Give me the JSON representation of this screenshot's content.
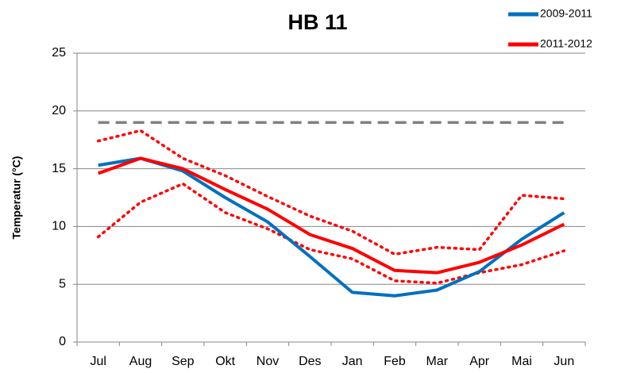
{
  "chart_data": {
    "type": "line",
    "title": "HB 11",
    "y_label": "Temperatur (°C)",
    "categories": [
      "Jul",
      "Aug",
      "Sep",
      "Okt",
      "Nov",
      "Des",
      "Jan",
      "Feb",
      "Mar",
      "Apr",
      "Mai",
      "Jun"
    ],
    "series": [
      {
        "values": [
          19,
          19,
          19,
          19,
          19,
          19,
          19,
          19,
          19,
          19,
          19,
          19
        ],
        "color": "#808080",
        "style": "dashed"
      },
      {
        "values": [
          17.4,
          18.3,
          15.9,
          14.4,
          12.6,
          10.9,
          9.6,
          7.6,
          8.2,
          8.0,
          12.7,
          12.4
        ],
        "color": "#ff0000",
        "style": "dotted"
      },
      {
        "values": [
          9.1,
          12.1,
          13.7,
          11.2,
          9.8,
          8.0,
          7.2,
          5.3,
          5.1,
          6.0,
          6.7,
          7.9
        ],
        "color": "#ff0000",
        "style": "dotted"
      },
      {
        "name": "2009-2011",
        "values": [
          15.3,
          15.9,
          14.8,
          12.5,
          10.4,
          7.4,
          4.3,
          4.0,
          4.5,
          6.1,
          8.9,
          11.2
        ],
        "color": "#0070c0",
        "style": "solid"
      },
      {
        "name": "2011-2012",
        "values": [
          14.6,
          15.9,
          15.0,
          13.2,
          11.5,
          9.3,
          8.1,
          6.2,
          6.0,
          6.9,
          8.4,
          10.2
        ],
        "color": "#ff0000",
        "style": "solid"
      }
    ],
    "ylim": [
      0,
      25
    ],
    "yticks": [
      0,
      5,
      10,
      15,
      20,
      25
    ],
    "grid": true,
    "legend": "top-right"
  }
}
